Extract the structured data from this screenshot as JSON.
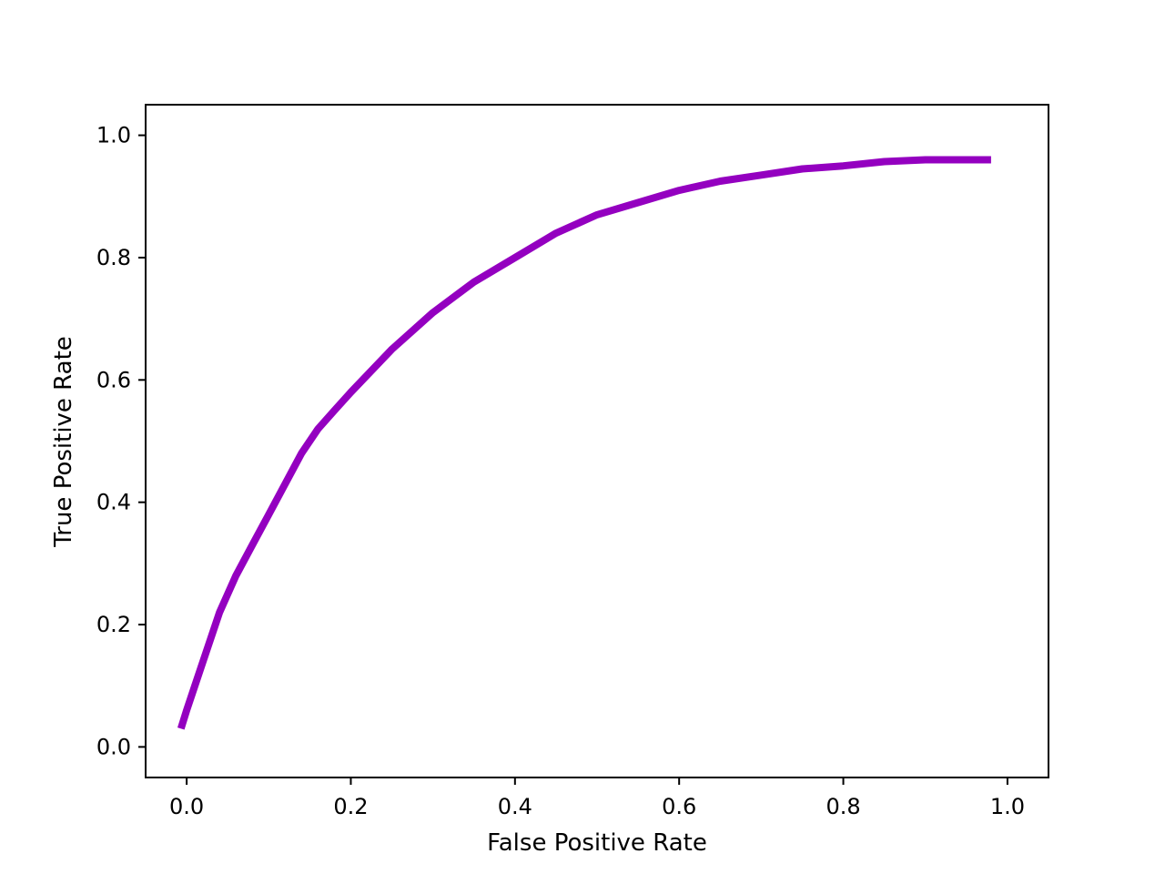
{
  "chart_data": {
    "type": "line",
    "title": "",
    "xlabel": "False Positive Rate",
    "ylabel": "True Positive Rate",
    "xlim": [
      -0.05,
      1.05
    ],
    "ylim": [
      -0.05,
      1.05
    ],
    "xticks": [
      "0.0",
      "0.2",
      "0.4",
      "0.6",
      "0.8",
      "1.0"
    ],
    "yticks": [
      "0.0",
      "0.2",
      "0.4",
      "0.6",
      "0.8",
      "1.0"
    ],
    "grid": false,
    "legend": "none",
    "series": [
      {
        "color": "#9400c0",
        "x": [
          -0.007,
          0.0,
          0.01,
          0.02,
          0.04,
          0.06,
          0.08,
          0.1,
          0.12,
          0.14,
          0.16,
          0.18,
          0.2,
          0.25,
          0.3,
          0.35,
          0.4,
          0.45,
          0.5,
          0.55,
          0.6,
          0.65,
          0.7,
          0.75,
          0.8,
          0.85,
          0.9,
          0.95,
          0.98
        ],
        "y": [
          0.03,
          0.06,
          0.1,
          0.14,
          0.22,
          0.28,
          0.33,
          0.38,
          0.43,
          0.48,
          0.52,
          0.55,
          0.58,
          0.65,
          0.71,
          0.76,
          0.8,
          0.84,
          0.87,
          0.89,
          0.91,
          0.925,
          0.935,
          0.945,
          0.95,
          0.957,
          0.96,
          0.96,
          0.96
        ]
      }
    ]
  }
}
